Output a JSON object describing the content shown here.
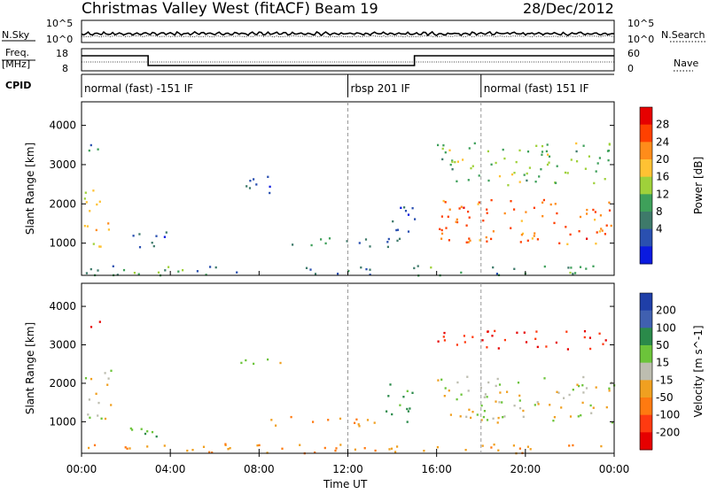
{
  "header": {
    "station": "Christmas Valley West (fitACF)",
    "beam": "Beam 19",
    "date": "28/Dec/2012"
  },
  "nsky_panel": {
    "left_label": "N.Sky",
    "left_ticks": [
      "10^5",
      "10^0"
    ],
    "right_ticks": [
      "10^5",
      "10^0"
    ],
    "right_label": "N.Search"
  },
  "freq_panel": {
    "left_label_1": "Freq.",
    "left_label_2": "[MHz]",
    "left_ticks": [
      "18",
      "8"
    ],
    "right_ticks": [
      "60",
      "0"
    ],
    "right_label": "Nave"
  },
  "cpid_panel": {
    "label": "CPID",
    "modes": [
      {
        "label": "normal (fast) -151 IF",
        "start_hour": 0
      },
      {
        "label": "rbsp 201 IF",
        "start_hour": 12
      },
      {
        "label": "normal (fast) 151 IF",
        "start_hour": 18
      }
    ]
  },
  "x_axis": {
    "label": "Time UT",
    "ticks": [
      "00:00",
      "04:00",
      "08:00",
      "12:00",
      "16:00",
      "20:00",
      "00:00"
    ]
  },
  "chart_data": [
    {
      "type": "heatmap",
      "title": "Power",
      "ylabel": "Slant Range [km]",
      "ylim": [
        180,
        4600
      ],
      "y_ticks": [
        1000,
        2000,
        3000,
        4000
      ],
      "colorbar": {
        "label": "Power [dB]",
        "ticks": [
          "28",
          "24",
          "20",
          "16",
          "12",
          "8",
          "4"
        ],
        "colors": [
          "#e60000",
          "#ff4000",
          "#ff8c1a",
          "#ffc233",
          "#9fd13a",
          "#3ea05a",
          "#3e7a6a",
          "#2a50b0",
          "#0a1ae0"
        ]
      },
      "regions": [
        {
          "t0": 0.1,
          "t1": 1.3,
          "r0": 900,
          "r1": 2400,
          "value": 20
        },
        {
          "t0": 0.2,
          "t1": 0.8,
          "r0": 3100,
          "r1": 3600,
          "value": 8
        },
        {
          "t0": 2.0,
          "t1": 4.0,
          "r0": 850,
          "r1": 1300,
          "value": 6
        },
        {
          "t0": 7.0,
          "t1": 9.0,
          "r0": 2300,
          "r1": 2800,
          "value": 5
        },
        {
          "t0": 8.3,
          "t1": 14.0,
          "r0": 900,
          "r1": 1150,
          "value": 7
        },
        {
          "t0": 13.6,
          "t1": 15.0,
          "r0": 1000,
          "r1": 2000,
          "value": 6
        },
        {
          "t0": 16.0,
          "t1": 24.0,
          "r0": 1000,
          "r1": 2200,
          "value": 26
        },
        {
          "t0": 16.0,
          "t1": 24.0,
          "r0": 2500,
          "r1": 3600,
          "value": 14
        },
        {
          "t0": 0.0,
          "t1": 24.0,
          "r0": 200,
          "r1": 450,
          "value": 10
        }
      ]
    },
    {
      "type": "heatmap",
      "title": "Velocity",
      "ylabel": "Slant Range [km]",
      "ylim": [
        180,
        4600
      ],
      "y_ticks": [
        1000,
        2000,
        3000,
        4000
      ],
      "colorbar": {
        "label": "Velocity [m s^-1]",
        "ticks": [
          "200",
          "100",
          "50",
          "15",
          "-15",
          "-50",
          "-100",
          "-200"
        ],
        "colors": [
          "#1f3fa8",
          "#4060b0",
          "#2a8a4a",
          "#6cc43a",
          "#bdbdb0",
          "#f0a020",
          "#ff7a10",
          "#ff3a10",
          "#e60000"
        ]
      },
      "regions": [
        {
          "t0": 0.1,
          "t1": 1.3,
          "r0": 900,
          "r1": 2400,
          "value": 0
        },
        {
          "t0": 0.2,
          "t1": 0.8,
          "r0": 3400,
          "r1": 3700,
          "value": -200
        },
        {
          "t0": 2.0,
          "t1": 4.0,
          "r0": 600,
          "r1": 1000,
          "value": 30
        },
        {
          "t0": 7.0,
          "t1": 9.0,
          "r0": 2500,
          "r1": 2800,
          "value": 0
        },
        {
          "t0": 8.3,
          "t1": 14.0,
          "r0": 900,
          "r1": 1150,
          "value": -30
        },
        {
          "t0": 13.6,
          "t1": 15.0,
          "r0": 1000,
          "r1": 2000,
          "value": 30
        },
        {
          "t0": 16.0,
          "t1": 24.0,
          "r0": 1000,
          "r1": 2200,
          "value": 0
        },
        {
          "t0": 16.0,
          "t1": 24.0,
          "r0": 2900,
          "r1": 3400,
          "value": -150
        },
        {
          "t0": 0.0,
          "t1": 24.0,
          "r0": 200,
          "r1": 450,
          "value": -30
        }
      ]
    }
  ]
}
